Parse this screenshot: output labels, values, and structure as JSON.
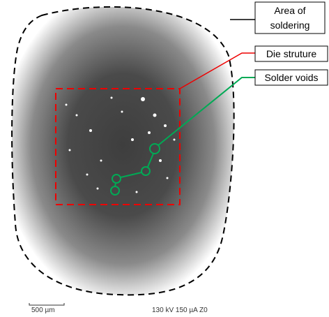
{
  "labels": {
    "area_of_soldering": [
      "Area of",
      "soldering"
    ],
    "die_structure": "Die struture",
    "solder_voids": "Solder voids"
  },
  "image_footer": {
    "scale_bar": "500 µm",
    "settings": "130 kV 150 µA Z0"
  }
}
